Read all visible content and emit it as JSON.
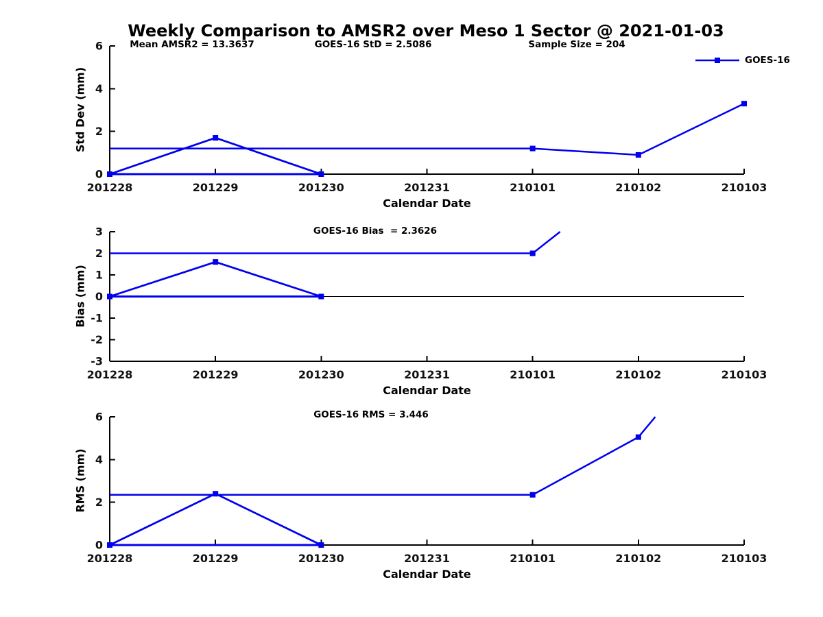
{
  "title": "Weekly Comparison to AMSR2 over Meso 1 Sector @ 2021-01-03",
  "legend": {
    "label": "GOES-16"
  },
  "colors": {
    "series": "#0000ee",
    "axis": "#000000",
    "text": "#111111"
  },
  "chart_data": [
    {
      "type": "line",
      "ylabel": "Std Dev (mm)",
      "xlabel": "Calendar Date",
      "ylim": [
        0,
        6
      ],
      "yticks": [
        0,
        2,
        4,
        6
      ],
      "categories": [
        "201228",
        "201229",
        "201230",
        "201231",
        "210101",
        "210102",
        "210103"
      ],
      "annotations": [
        "Mean AMSR2 = 13.3637",
        "GOES-16 StD = 2.5086",
        "Sample Size = 204"
      ],
      "legend_entries": [
        "GOES-16"
      ],
      "grid": false,
      "zeroline": false,
      "series": [
        {
          "name": "goes16-daily",
          "lw": 2.75,
          "points": [
            {
              "x": 0,
              "y": 0,
              "m": true
            },
            {
              "x": 1,
              "y": 1.7,
              "m": true
            },
            {
              "x": 2,
              "y": 0,
              "m": true
            }
          ]
        },
        {
          "name": "zero-baseline-segment",
          "lw": 3,
          "points": [
            {
              "x": 0,
              "y": 0
            },
            {
              "x": 2,
              "y": 0
            }
          ]
        },
        {
          "name": "goes16-weekly",
          "lw": 2.5,
          "points": [
            {
              "x": 0,
              "y": 1.2
            },
            {
              "x": 4,
              "y": 1.2,
              "m": true
            },
            {
              "x": 5,
              "y": 0.9,
              "m": true
            },
            {
              "x": 6,
              "y": 3.3,
              "m": true
            }
          ]
        }
      ]
    },
    {
      "type": "line",
      "ylabel": "Bias (mm)",
      "xlabel": "Calendar Date",
      "ylim": [
        -3,
        3
      ],
      "yticks": [
        3,
        2,
        1,
        0,
        -1,
        -2,
        -3
      ],
      "categories": [
        "201228",
        "201229",
        "201230",
        "201231",
        "210101",
        "210102",
        "210103"
      ],
      "annotations": [
        "GOES-16 Bias  = 2.3626"
      ],
      "grid": false,
      "zeroline": true,
      "series": [
        {
          "name": "goes16-daily",
          "lw": 2.75,
          "points": [
            {
              "x": 0,
              "y": 0,
              "m": true
            },
            {
              "x": 1,
              "y": 1.6,
              "m": true
            },
            {
              "x": 2,
              "y": 0,
              "m": true
            }
          ]
        },
        {
          "name": "zero-baseline-segment",
          "lw": 3,
          "points": [
            {
              "x": 0,
              "y": 0
            },
            {
              "x": 2,
              "y": 0
            }
          ]
        },
        {
          "name": "goes16-weekly",
          "lw": 2.5,
          "points": [
            {
              "x": 0,
              "y": 2.0
            },
            {
              "x": 4,
              "y": 2.0,
              "m": true
            },
            {
              "x": 4.26,
              "y": 3.0
            }
          ]
        }
      ]
    },
    {
      "type": "line",
      "ylabel": "RMS (mm)",
      "xlabel": "Calendar Date",
      "ylim": [
        0,
        6
      ],
      "yticks": [
        0,
        2,
        4,
        6
      ],
      "categories": [
        "201228",
        "201229",
        "201230",
        "201231",
        "210101",
        "210102",
        "210103"
      ],
      "annotations": [
        "GOES-16 RMS = 3.446"
      ],
      "grid": false,
      "zeroline": false,
      "series": [
        {
          "name": "goes16-daily",
          "lw": 2.75,
          "points": [
            {
              "x": 0,
              "y": 0,
              "m": true
            },
            {
              "x": 1,
              "y": 2.4,
              "m": true
            },
            {
              "x": 2,
              "y": 0,
              "m": true
            }
          ]
        },
        {
          "name": "zero-baseline-segment",
          "lw": 3,
          "points": [
            {
              "x": 0,
              "y": 0
            },
            {
              "x": 2,
              "y": 0
            }
          ]
        },
        {
          "name": "goes16-weekly",
          "lw": 2.5,
          "points": [
            {
              "x": 0,
              "y": 2.35
            },
            {
              "x": 4,
              "y": 2.35,
              "m": true
            },
            {
              "x": 5,
              "y": 5.05,
              "m": true
            },
            {
              "x": 5.16,
              "y": 6.0
            }
          ]
        }
      ]
    }
  ]
}
